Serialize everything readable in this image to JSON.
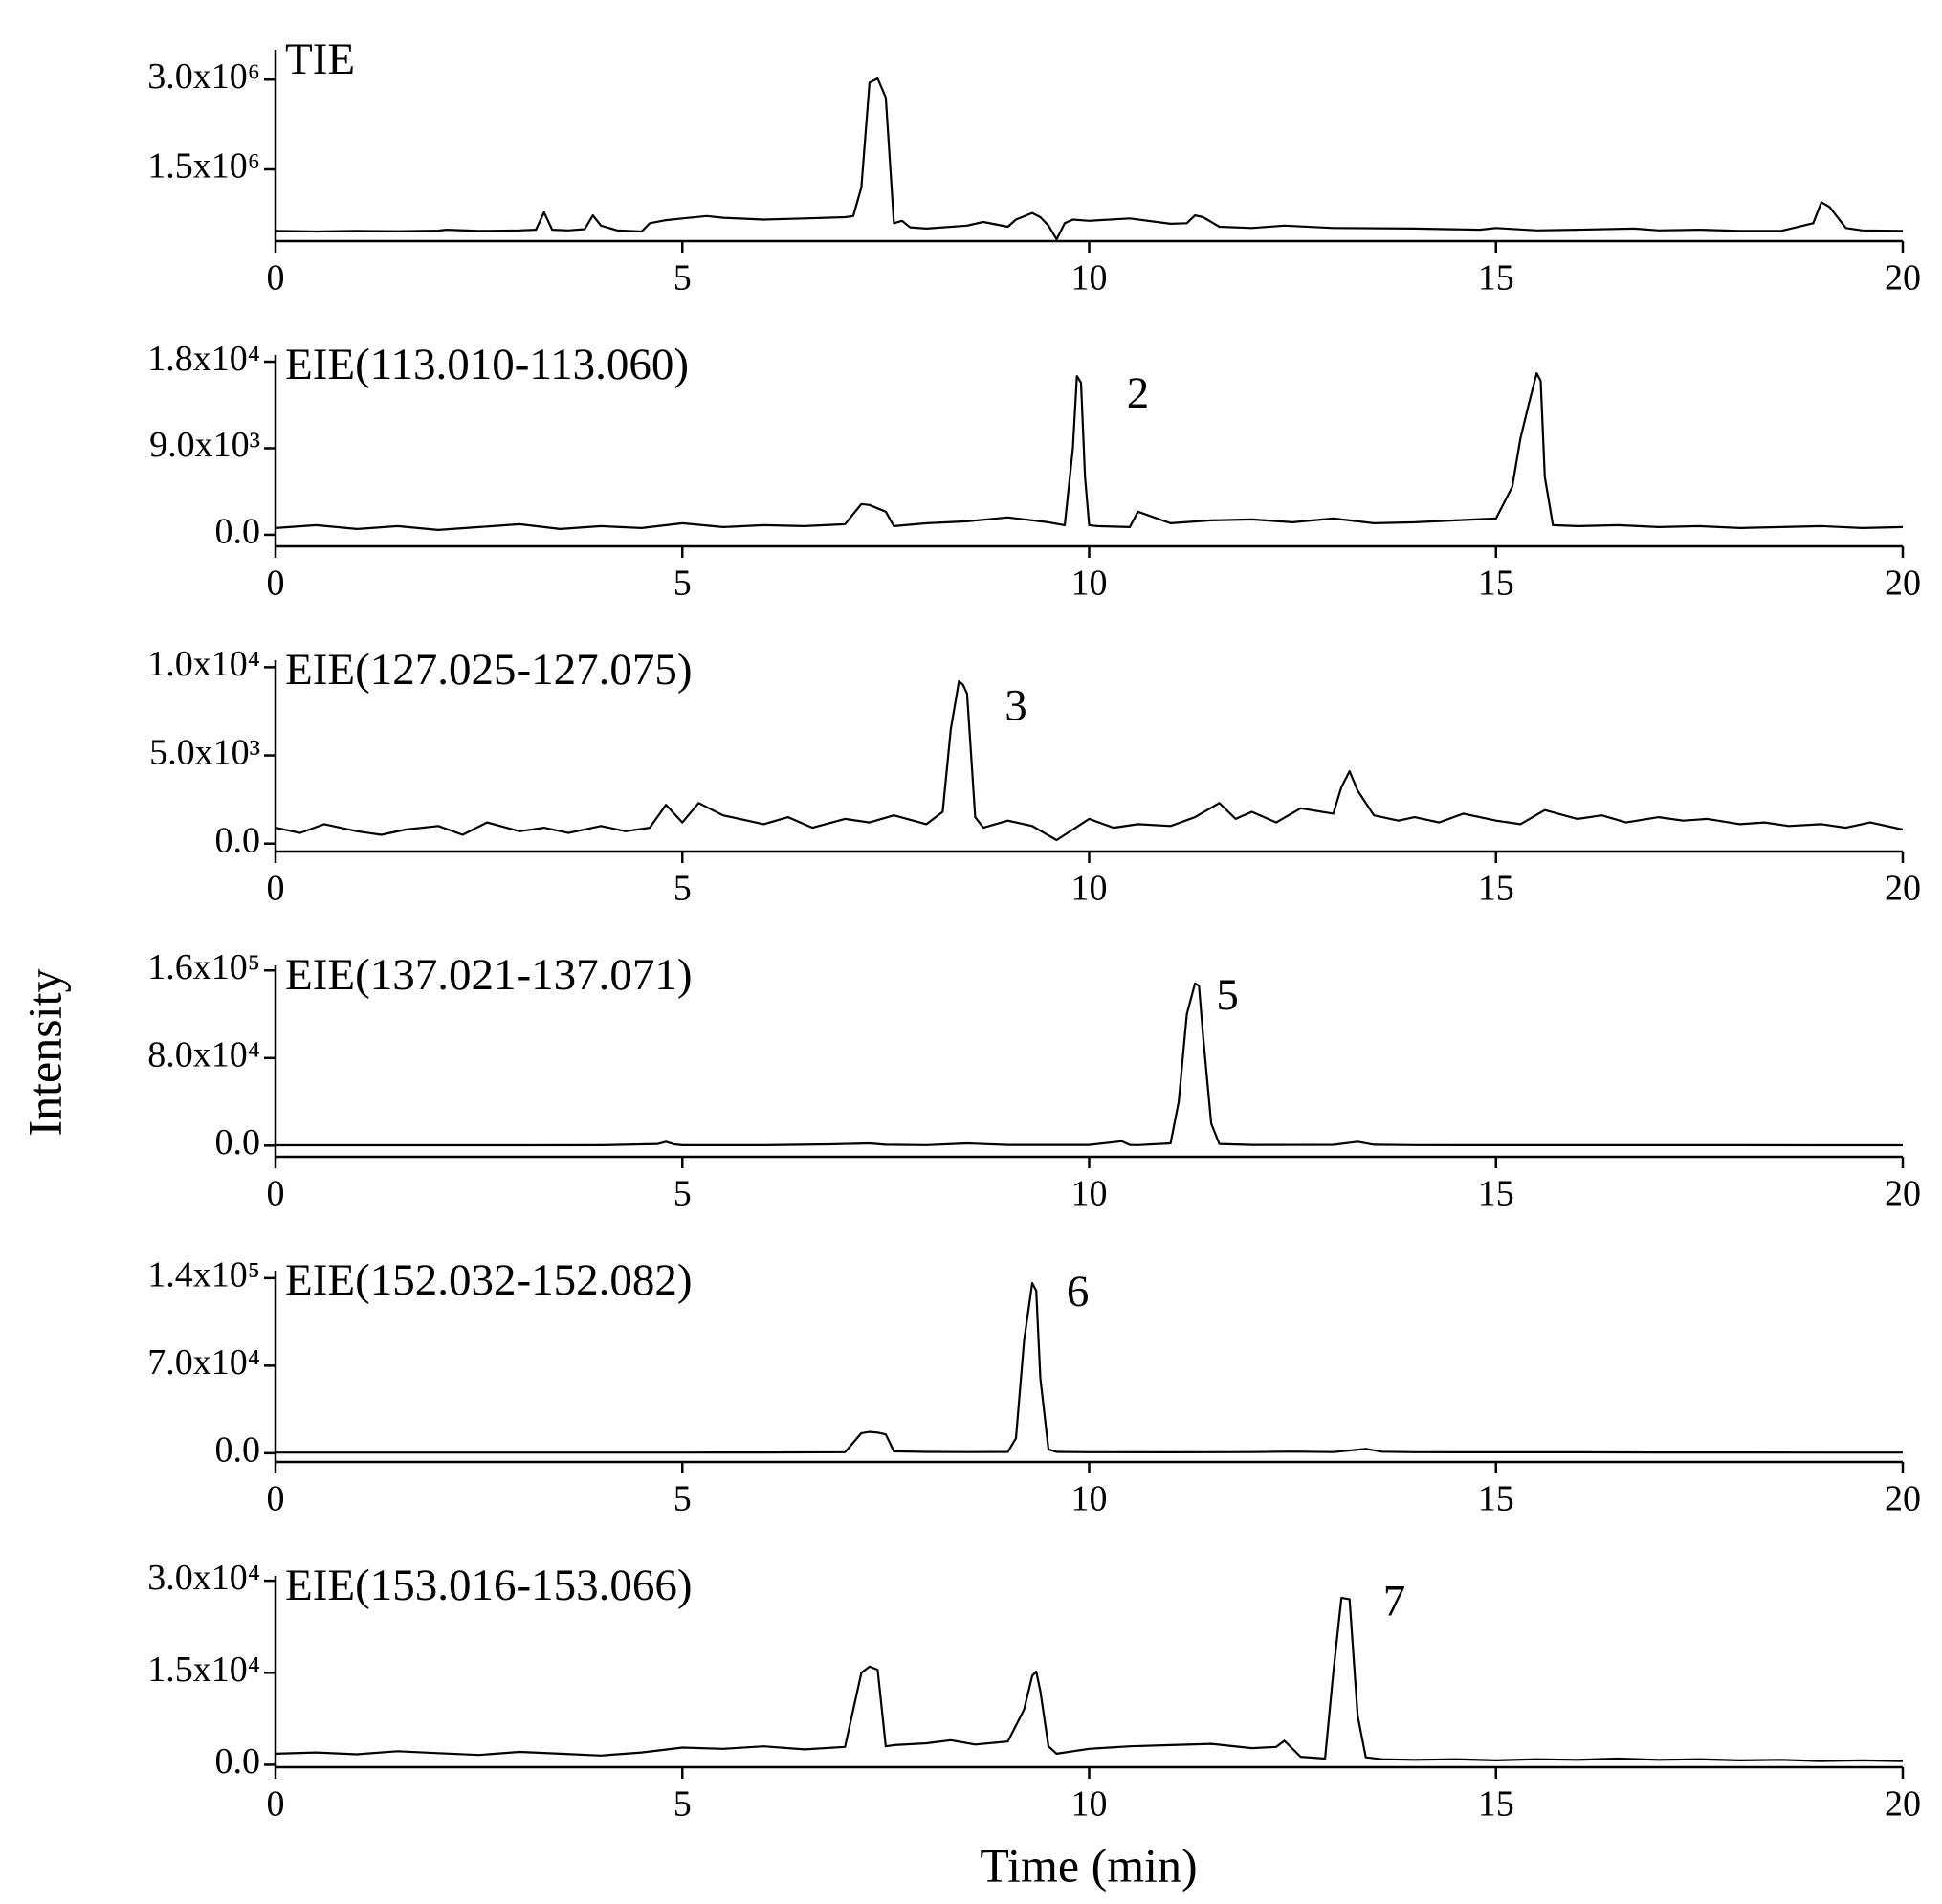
{
  "xlabel": "Time (min)",
  "ylabel": "Intensity",
  "chart_data": [
    {
      "type": "line",
      "title": "TIE",
      "annotations": [],
      "x": [
        0,
        0.5,
        1,
        1.5,
        2,
        2.1,
        2.5,
        3,
        3.2,
        3.3,
        3.4,
        3.6,
        3.8,
        3.9,
        4.0,
        4.2,
        4.5,
        4.6,
        4.8,
        5,
        5.3,
        5.5,
        6,
        6.5,
        7,
        7.1,
        7.2,
        7.3,
        7.4,
        7.5,
        7.6,
        7.7,
        7.8,
        8,
        8.5,
        8.7,
        9,
        9.1,
        9.3,
        9.4,
        9.5,
        9.6,
        9.7,
        9.8,
        10,
        10.5,
        11,
        11.2,
        11.3,
        11.4,
        11.6,
        12,
        12.4,
        13,
        14,
        14.8,
        15,
        15.5,
        16,
        16.7,
        17,
        17.5,
        18,
        18.5,
        18.9,
        19,
        19.1,
        19.3,
        19.5,
        20
      ],
      "series": [
        {
          "color": "#000000",
          "values": [
            470000,
            460000,
            470000,
            465000,
            475000,
            490000,
            470000,
            480000,
            490000,
            780000,
            490000,
            480000,
            500000,
            730000,
            560000,
            480000,
            460000,
            600000,
            650000,
            680000,
            720000,
            690000,
            660000,
            680000,
            700000,
            720000,
            1200000,
            2950000,
            3020000,
            2700000,
            600000,
            640000,
            530000,
            510000,
            560000,
            620000,
            540000,
            660000,
            770000,
            700000,
            560000,
            330000,
            600000,
            660000,
            640000,
            680000,
            590000,
            600000,
            730000,
            700000,
            540000,
            520000,
            560000,
            520000,
            510000,
            490000,
            520000,
            480000,
            490000,
            510000,
            480000,
            490000,
            470000,
            470000,
            600000,
            950000,
            870000,
            520000,
            480000,
            470000
          ]
        }
      ],
      "xlim": [
        0,
        20
      ],
      "xticks": [
        0,
        5,
        10,
        15,
        20
      ],
      "ylim": [
        300000,
        3500000
      ],
      "yticks": [
        {
          "value": 1500000,
          "label": "1.5x10⁶"
        },
        {
          "value": 3000000,
          "label": "3.0x10⁶"
        }
      ]
    },
    {
      "type": "line",
      "title": "EIE(113.010-113.060)",
      "annotations": [
        {
          "text": "2",
          "x": 10.6,
          "y": 14300
        }
      ],
      "x": [
        0,
        0.5,
        1,
        1.5,
        2,
        2.5,
        3,
        3.5,
        4,
        4.5,
        5,
        5.5,
        6,
        6.5,
        7,
        7.2,
        7.3,
        7.5,
        7.6,
        8,
        8.5,
        9,
        9.5,
        9.7,
        9.8,
        9.85,
        9.9,
        9.95,
        10,
        10.1,
        10.5,
        10.6,
        11,
        11.5,
        12,
        12.5,
        13,
        13.5,
        14,
        14.5,
        15,
        15.2,
        15.3,
        15.4,
        15.5,
        15.55,
        15.6,
        15.7,
        16,
        16.5,
        17,
        17.5,
        18,
        18.5,
        19,
        19.5,
        20
      ],
      "series": [
        {
          "color": "#000000",
          "values": [
            700,
            1000,
            600,
            900,
            500,
            800,
            1100,
            600,
            900,
            700,
            1200,
            800,
            1000,
            900,
            1100,
            3200,
            3100,
            2400,
            900,
            1200,
            1400,
            1800,
            1300,
            1000,
            9000,
            16500,
            15800,
            6000,
            1000,
            900,
            800,
            2400,
            1200,
            1500,
            1600,
            1300,
            1700,
            1200,
            1300,
            1500,
            1700,
            5000,
            10000,
            13500,
            16800,
            16000,
            6000,
            1000,
            900,
            1000,
            800,
            900,
            700,
            800,
            900,
            700,
            800
          ]
        }
      ],
      "xlim": [
        0,
        20
      ],
      "xticks": [
        0,
        5,
        10,
        15,
        20
      ],
      "ylim": [
        -1200,
        18700
      ],
      "yticks": [
        {
          "value": 0,
          "label": "0.0"
        },
        {
          "value": 9000,
          "label": "9.0x10³"
        },
        {
          "value": 18000,
          "label": "1.8x10⁴"
        }
      ]
    },
    {
      "type": "line",
      "title": "EIE(127.025-127.075)",
      "annotations": [
        {
          "text": "3",
          "x": 9.1,
          "y": 7600
        }
      ],
      "x": [
        0,
        0.3,
        0.6,
        1,
        1.3,
        1.6,
        2,
        2.3,
        2.6,
        3,
        3.3,
        3.6,
        4,
        4.3,
        4.6,
        4.8,
        5,
        5.2,
        5.5,
        5.8,
        6,
        6.3,
        6.6,
        7,
        7.3,
        7.6,
        8,
        8.2,
        8.3,
        8.4,
        8.45,
        8.5,
        8.6,
        8.7,
        9,
        9.3,
        9.6,
        10,
        10.3,
        10.6,
        11,
        11.3,
        11.6,
        11.8,
        12,
        12.3,
        12.6,
        13,
        13.1,
        13.2,
        13.3,
        13.5,
        13.8,
        14,
        14.3,
        14.6,
        15,
        15.3,
        15.6,
        16,
        16.3,
        16.6,
        17,
        17.3,
        17.6,
        18,
        18.3,
        18.6,
        19,
        19.3,
        19.6,
        20
      ],
      "series": [
        {
          "color": "#000000",
          "values": [
            900,
            600,
            1100,
            700,
            500,
            800,
            1000,
            500,
            1200,
            700,
            900,
            600,
            1000,
            700,
            900,
            2200,
            1200,
            2300,
            1600,
            1300,
            1100,
            1500,
            900,
            1400,
            1200,
            1600,
            1100,
            1800,
            6500,
            9200,
            9000,
            8500,
            1500,
            900,
            1300,
            1000,
            200,
            1400,
            900,
            1100,
            1000,
            1500,
            2300,
            1400,
            1800,
            1200,
            2000,
            1700,
            3200,
            4100,
            3000,
            1600,
            1300,
            1500,
            1200,
            1700,
            1300,
            1100,
            1900,
            1400,
            1600,
            1200,
            1500,
            1300,
            1400,
            1100,
            1200,
            1000,
            1100,
            900,
            1200,
            800
          ]
        }
      ],
      "xlim": [
        0,
        20
      ],
      "xticks": [
        0,
        5,
        10,
        15,
        20
      ],
      "ylim": [
        -450,
        10400
      ],
      "yticks": [
        {
          "value": 0,
          "label": "0.0"
        },
        {
          "value": 5000,
          "label": "5.0x10³"
        },
        {
          "value": 10000,
          "label": "1.0x10⁴"
        }
      ]
    },
    {
      "type": "line",
      "title": "EIE(137.021-137.071)",
      "annotations": [
        {
          "text": "5",
          "x": 11.7,
          "y": 134000
        }
      ],
      "x": [
        0,
        1,
        2,
        3,
        4,
        4.7,
        4.8,
        4.9,
        5,
        6,
        6.8,
        7.3,
        7.5,
        8,
        8.5,
        9,
        10,
        10.4,
        10.5,
        10.6,
        11,
        11.1,
        11.2,
        11.3,
        11.35,
        11.4,
        11.5,
        11.6,
        12,
        13,
        13.3,
        13.5,
        14,
        15,
        16,
        17,
        18,
        19,
        20
      ],
      "series": [
        {
          "color": "#000000",
          "values": [
            300,
            300,
            300,
            300,
            400,
            1500,
            3500,
            1200,
            400,
            400,
            1200,
            2000,
            800,
            500,
            2000,
            600,
            600,
            4000,
            600,
            500,
            2000,
            40000,
            120000,
            148000,
            146000,
            100000,
            20000,
            1500,
            600,
            700,
            3500,
            800,
            500,
            400,
            400,
            400,
            400,
            300,
            300
          ]
        }
      ],
      "xlim": [
        0,
        20
      ],
      "xticks": [
        0,
        5,
        10,
        15,
        20
      ],
      "ylim": [
        -10200,
        164600
      ],
      "yticks": [
        {
          "value": 0,
          "label": "0.0"
        },
        {
          "value": 80000,
          "label": "8.0x10⁴"
        },
        {
          "value": 160000,
          "label": "1.6x10⁵"
        }
      ]
    },
    {
      "type": "line",
      "title": "EIE(152.032-152.082)",
      "annotations": [
        {
          "text": "6",
          "x": 9.86,
          "y": 126000
        }
      ],
      "x": [
        0,
        1,
        2,
        3,
        4,
        5,
        6,
        7,
        7.2,
        7.3,
        7.4,
        7.5,
        7.6,
        8,
        8.5,
        9,
        9.1,
        9.2,
        9.3,
        9.35,
        9.4,
        9.5,
        9.6,
        10,
        11,
        12,
        12.5,
        13,
        13.4,
        13.6,
        14,
        15,
        16,
        17,
        18,
        19,
        20
      ],
      "series": [
        {
          "color": "#000000",
          "values": [
            500,
            500,
            500,
            500,
            500,
            500,
            600,
            800,
            16000,
            17000,
            16500,
            15000,
            1500,
            1000,
            900,
            1000,
            12000,
            90000,
            136000,
            130000,
            60000,
            3000,
            1000,
            800,
            700,
            900,
            1300,
            900,
            3500,
            1200,
            800,
            700,
            700,
            600,
            600,
            500,
            500
          ]
        }
      ],
      "xlim": [
        0,
        20
      ],
      "xticks": [
        0,
        5,
        10,
        15,
        20
      ],
      "ylim": [
        -7000,
        146000
      ],
      "yticks": [
        {
          "value": 0,
          "label": "0.0"
        },
        {
          "value": 70000,
          "label": "7.0x10⁴"
        },
        {
          "value": 140000,
          "label": "1.4x10⁵"
        }
      ]
    },
    {
      "type": "line",
      "title": "EIE(153.016-153.066)",
      "annotations": [
        {
          "text": "7",
          "x": 13.75,
          "y": 26000
        }
      ],
      "x": [
        0,
        0.5,
        1,
        1.5,
        2,
        2.5,
        3,
        3.5,
        4,
        4.5,
        5,
        5.5,
        6,
        6.5,
        7,
        7.2,
        7.3,
        7.4,
        7.5,
        7.6,
        8,
        8.3,
        8.6,
        9,
        9.2,
        9.3,
        9.35,
        9.4,
        9.5,
        9.6,
        10,
        10.5,
        11,
        11.5,
        12,
        12.3,
        12.4,
        12.6,
        12.9,
        13,
        13.1,
        13.2,
        13.3,
        13.4,
        13.6,
        14,
        14.5,
        15,
        15.5,
        16,
        16.5,
        17,
        17.5,
        18,
        18.5,
        19,
        19.5,
        20
      ],
      "series": [
        {
          "color": "#000000",
          "values": [
            1800,
            2000,
            1700,
            2200,
            1900,
            1600,
            2100,
            1800,
            1500,
            2000,
            2800,
            2600,
            3000,
            2500,
            2900,
            15000,
            16000,
            15500,
            3000,
            3200,
            3500,
            4000,
            3300,
            3800,
            9000,
            14500,
            15200,
            12000,
            3000,
            1800,
            2600,
            3000,
            3200,
            3400,
            2700,
            2900,
            3900,
            1300,
            1000,
            15000,
            27200,
            27000,
            8000,
            1200,
            900,
            800,
            900,
            700,
            900,
            800,
            1000,
            800,
            900,
            700,
            800,
            600,
            700,
            600
          ]
        }
      ],
      "xlim": [
        0,
        20
      ],
      "xticks": [
        0,
        5,
        10,
        15,
        20
      ],
      "ylim": [
        -400,
        30800
      ],
      "yticks": [
        {
          "value": 0,
          "label": "0.0"
        },
        {
          "value": 15000,
          "label": "1.5x10⁴"
        },
        {
          "value": 30000,
          "label": "3.0x10⁴"
        }
      ]
    }
  ]
}
